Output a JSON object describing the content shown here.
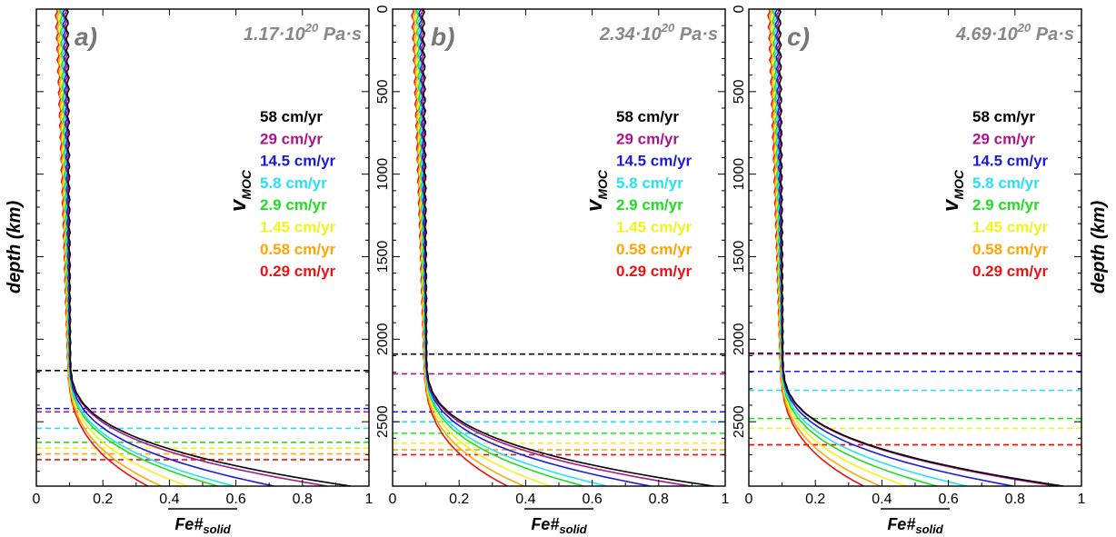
{
  "figure": {
    "ylabel": "depth (km)",
    "xlabel_main": "Fe#",
    "xlabel_sub": "solid",
    "legend_title_main": "v",
    "legend_title_sub": "MOC"
  },
  "legend": [
    {
      "label": "58 cm/yr",
      "color": "#000000"
    },
    {
      "label": "29 cm/yr",
      "color": "#a8158a"
    },
    {
      "label": "14.5 cm/yr",
      "color": "#1a1adb"
    },
    {
      "label": "5.8 cm/yr",
      "color": "#22e4f2"
    },
    {
      "label": "2.9 cm/yr",
      "color": "#1ee01e"
    },
    {
      "label": "1.45 cm/yr",
      "color": "#f2f21c"
    },
    {
      "label": "0.58 cm/yr",
      "color": "#ffa600"
    },
    {
      "label": "0.29 cm/yr",
      "color": "#ee1111"
    }
  ],
  "chart_data": [
    {
      "type": "line",
      "panel_label": "a)",
      "viscosity_base": "1.17·10",
      "viscosity_exp": "20",
      "viscosity_unit": "Pa·s",
      "xlabel": "Fe#solid",
      "ylabel": "depth (km)",
      "xlim": [
        0,
        1
      ],
      "ylim": [
        2890,
        0
      ],
      "xticks": [
        "0",
        "0.2",
        "0.4",
        "0.6",
        "0.8",
        "1"
      ],
      "yticks": [
        "0",
        "500",
        "1000",
        "1500",
        "2000",
        "2500"
      ],
      "series": [
        {
          "name": "58 cm/yr",
          "tail": 0.95,
          "front": 2190
        },
        {
          "name": "29 cm/yr",
          "tail": 0.88,
          "front": 2440
        },
        {
          "name": "14.5 cm/yr",
          "tail": 0.72,
          "front": 2420
        },
        {
          "name": "5.8 cm/yr",
          "tail": 0.6,
          "front": 2540
        },
        {
          "name": "2.9 cm/yr",
          "tail": 0.55,
          "front": 2625
        },
        {
          "name": "1.45 cm/yr",
          "tail": 0.46,
          "front": 2660
        },
        {
          "name": "0.58 cm/yr",
          "tail": 0.38,
          "front": 2695
        },
        {
          "name": "0.29 cm/yr",
          "tail": 0.34,
          "front": 2730
        }
      ]
    },
    {
      "type": "line",
      "panel_label": "b)",
      "viscosity_base": "2.34·10",
      "viscosity_exp": "20",
      "viscosity_unit": "Pa·s",
      "xlabel": "Fe#solid",
      "ylabel": "depth (km)",
      "xlim": [
        0,
        1
      ],
      "ylim": [
        2890,
        0
      ],
      "xticks": [
        "0",
        "0.2",
        "0.4",
        "0.6",
        "0.8",
        "1"
      ],
      "yticks": [
        "0",
        "500",
        "1000",
        "1500",
        "2000",
        "2500"
      ],
      "series": [
        {
          "name": "58 cm/yr",
          "tail": 0.97,
          "front": 2090
        },
        {
          "name": "29 cm/yr",
          "tail": 0.9,
          "front": 2210
        },
        {
          "name": "14.5 cm/yr",
          "tail": 0.78,
          "front": 2440
        },
        {
          "name": "5.8 cm/yr",
          "tail": 0.65,
          "front": 2500
        },
        {
          "name": "2.9 cm/yr",
          "tail": 0.58,
          "front": 2570
        },
        {
          "name": "1.45 cm/yr",
          "tail": 0.48,
          "front": 2630
        },
        {
          "name": "0.58 cm/yr",
          "tail": 0.4,
          "front": 2670
        },
        {
          "name": "0.29 cm/yr",
          "tail": 0.35,
          "front": 2700
        }
      ]
    },
    {
      "type": "line",
      "panel_label": "c)",
      "viscosity_base": "4.69·10",
      "viscosity_exp": "20",
      "viscosity_unit": "Pa·s",
      "xlabel": "Fe#solid",
      "ylabel": "depth (km)",
      "xlim": [
        0,
        1
      ],
      "ylim": [
        2890,
        0
      ],
      "xticks": [
        "0",
        "0.2",
        "0.4",
        "0.6",
        "0.8",
        "1"
      ],
      "yticks": [
        "0",
        "500",
        "1000",
        "1500",
        "2000",
        "2500"
      ],
      "series": [
        {
          "name": "58 cm/yr",
          "tail": 0.95,
          "front": 2085
        },
        {
          "name": "29 cm/yr",
          "tail": 0.93,
          "front": 2090
        },
        {
          "name": "14.5 cm/yr",
          "tail": 0.8,
          "front": 2195
        },
        {
          "name": "5.8 cm/yr",
          "tail": 0.66,
          "front": 2310
        },
        {
          "name": "2.9 cm/yr",
          "tail": 0.57,
          "front": 2480
        },
        {
          "name": "1.45 cm/yr",
          "tail": 0.48,
          "front": 2540
        },
        {
          "name": "0.58 cm/yr",
          "tail": 0.4,
          "front": 2640
        },
        {
          "name": "0.29 cm/yr",
          "tail": 0.35,
          "front": 2640
        }
      ]
    }
  ]
}
